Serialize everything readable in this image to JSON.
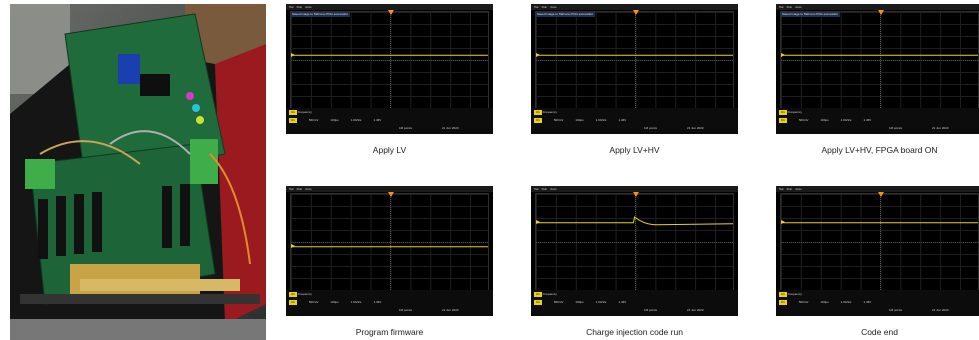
{
  "scope_ui": {
    "brand": "Tek",
    "run": "Run",
    "mode": "Auto",
    "save_note": "Saved image to TEKxxxx.PNG successful",
    "ch1_tag": "C1",
    "measure_label": "Frequency",
    "scale": "500mV",
    "timebase": "100µs",
    "sample_rate": "1.0GS/s",
    "record": "1M points",
    "trig_level": "1.46V",
    "date": "21 Jun 2023"
  },
  "panels": [
    {
      "caption": "Apply LV",
      "waveform": "flat",
      "level": 0.45
    },
    {
      "caption": "Apply LV+HV",
      "waveform": "flat",
      "level": 0.45
    },
    {
      "caption": "Apply LV+HV, FPGA board ON",
      "waveform": "flat",
      "level": 0.45
    },
    {
      "caption": "Program firmware",
      "waveform": "flat",
      "level": 0.55
    },
    {
      "caption": "Charge injection code run",
      "waveform": "pulse",
      "level": 0.3
    },
    {
      "caption": "Code end",
      "waveform": "flat",
      "level": 0.3
    }
  ],
  "colors": {
    "trace": "#e8d21a",
    "trigger": "#ff8c1a"
  }
}
